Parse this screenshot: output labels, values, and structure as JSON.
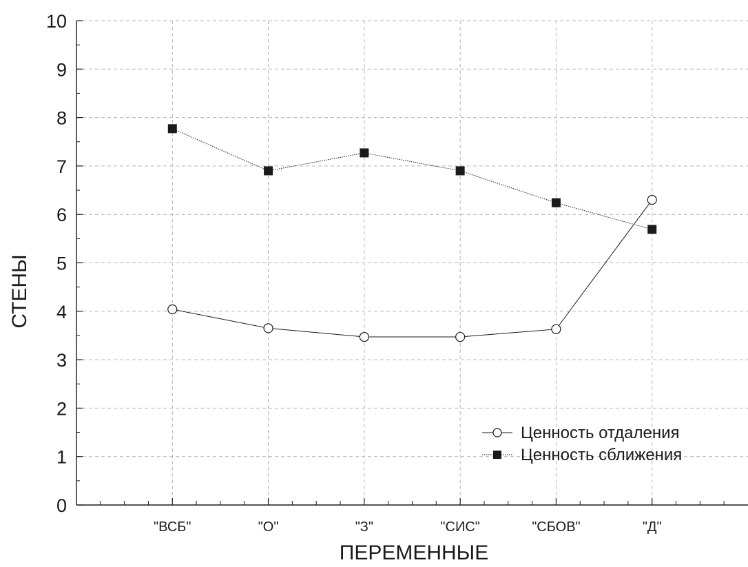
{
  "chart_data": {
    "type": "line",
    "title": "",
    "xlabel": "ПЕРЕМЕННЫЕ",
    "ylabel": "СТЕНЫ",
    "categories": [
      "\"ВСБ\"",
      "\"О\"",
      "\"З\"",
      "\"СИС\"",
      "\"СБОВ\"",
      "\"Д\""
    ],
    "ylim": [
      0,
      10
    ],
    "yticks": [
      "0",
      "1",
      "2",
      "3",
      "4",
      "5",
      "6",
      "7",
      "8",
      "9",
      "10"
    ],
    "grid": true,
    "legend_position": "bottom-right",
    "series": [
      {
        "name": "Ценность отдаления",
        "marker": "open-circle",
        "line_style": "solid",
        "values": [
          4.04,
          3.65,
          3.47,
          3.47,
          3.63,
          6.3
        ]
      },
      {
        "name": "Ценность сближения",
        "marker": "filled-square",
        "line_style": "dotted",
        "values": [
          7.77,
          6.9,
          7.27,
          6.9,
          6.24,
          5.69
        ]
      }
    ]
  },
  "colors": {
    "line": "#1a1a1a",
    "grid": "#b4b4b4",
    "background": "#ffffff"
  }
}
